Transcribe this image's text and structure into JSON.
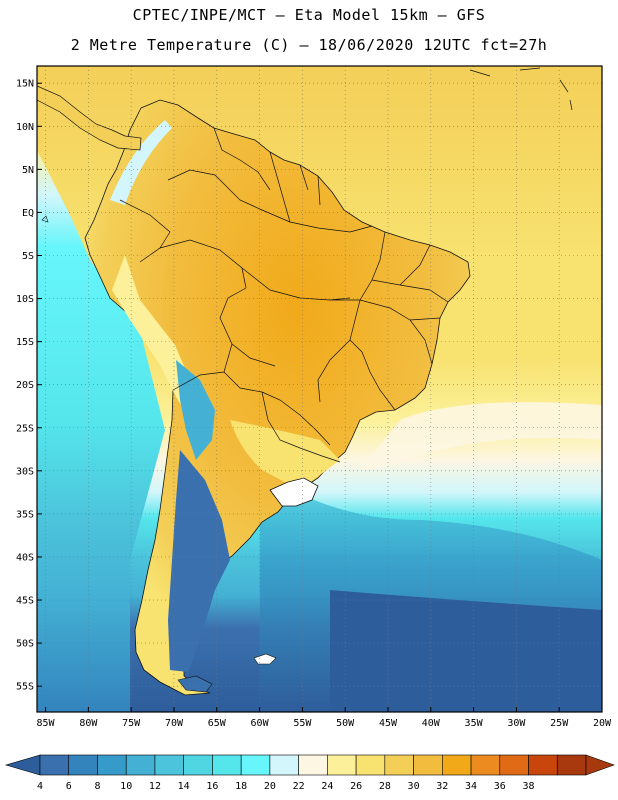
{
  "header": {
    "line1": "CPTEC/INPE/MCT –  Eta Model 15km – GFS",
    "line2": "2 Metre Temperature (C) – 18/06/2020 12UTC fct=27h"
  },
  "map": {
    "lat_labels": [
      "15N",
      "10N",
      "5N",
      "EQ",
      "5S",
      "10S",
      "15S",
      "20S",
      "25S",
      "30S",
      "35S",
      "40S",
      "45S",
      "50S",
      "55S"
    ],
    "lon_labels": [
      "85W",
      "80W",
      "75W",
      "70W",
      "65W",
      "60W",
      "55W",
      "50W",
      "45W",
      "40W",
      "35W",
      "30W",
      "25W",
      "20W"
    ],
    "lat_values": [
      15,
      10,
      5,
      0,
      -5,
      -10,
      -15,
      -20,
      -25,
      -30,
      -35,
      -40,
      -45,
      -50,
      -55
    ],
    "lon_values": [
      -85,
      -80,
      -75,
      -70,
      -65,
      -60,
      -55,
      -50,
      -45,
      -40,
      -35,
      -30,
      -25,
      -20
    ],
    "extent": {
      "lon_min": -86,
      "lon_max": -20,
      "lat_min": -58,
      "lat_max": 17
    }
  },
  "colorbar": {
    "labels": [
      "4",
      "6",
      "8",
      "10",
      "12",
      "14",
      "16",
      "18",
      "20",
      "22",
      "24",
      "26",
      "28",
      "30",
      "32",
      "34",
      "36",
      "38"
    ],
    "colors": [
      "#3b70ae",
      "#3384bd",
      "#369bc9",
      "#44b1d4",
      "#4cc4db",
      "#50d6e2",
      "#55e6ec",
      "#66f6fb",
      "#d2f6fb",
      "#fdf6e2",
      "#fcf19a",
      "#f8e270",
      "#f3cf58",
      "#f2bd3f",
      "#f1a919",
      "#ec8b1f",
      "#e06a15",
      "#c8450c",
      "#a8380e"
    ],
    "under_color": "#2e5d9b",
    "over_color": "#a8380e"
  }
}
